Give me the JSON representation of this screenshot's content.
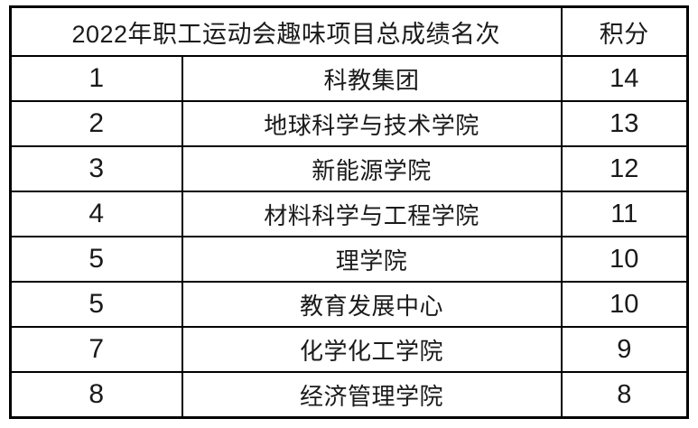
{
  "table": {
    "header": {
      "title": "2022年职工运动会趣味项目总成绩名次",
      "score_label": "积分"
    },
    "rows": [
      {
        "rank": "1",
        "name": "科教集团",
        "score": "14"
      },
      {
        "rank": "2",
        "name": "地球科学与技术学院",
        "score": "13"
      },
      {
        "rank": "3",
        "name": "新能源学院",
        "score": "12"
      },
      {
        "rank": "4",
        "name": "材料科学与工程学院",
        "score": "11"
      },
      {
        "rank": "5",
        "name": "理学院",
        "score": "10"
      },
      {
        "rank": "5",
        "name": "教育发展中心",
        "score": "10"
      },
      {
        "rank": "7",
        "name": "化学化工学院",
        "score": "9"
      },
      {
        "rank": "8",
        "name": "经济管理学院",
        "score": "8"
      }
    ],
    "style": {
      "border_color": "#000000",
      "background_color": "#ffffff",
      "text_color": "#1a1a1a"
    }
  }
}
